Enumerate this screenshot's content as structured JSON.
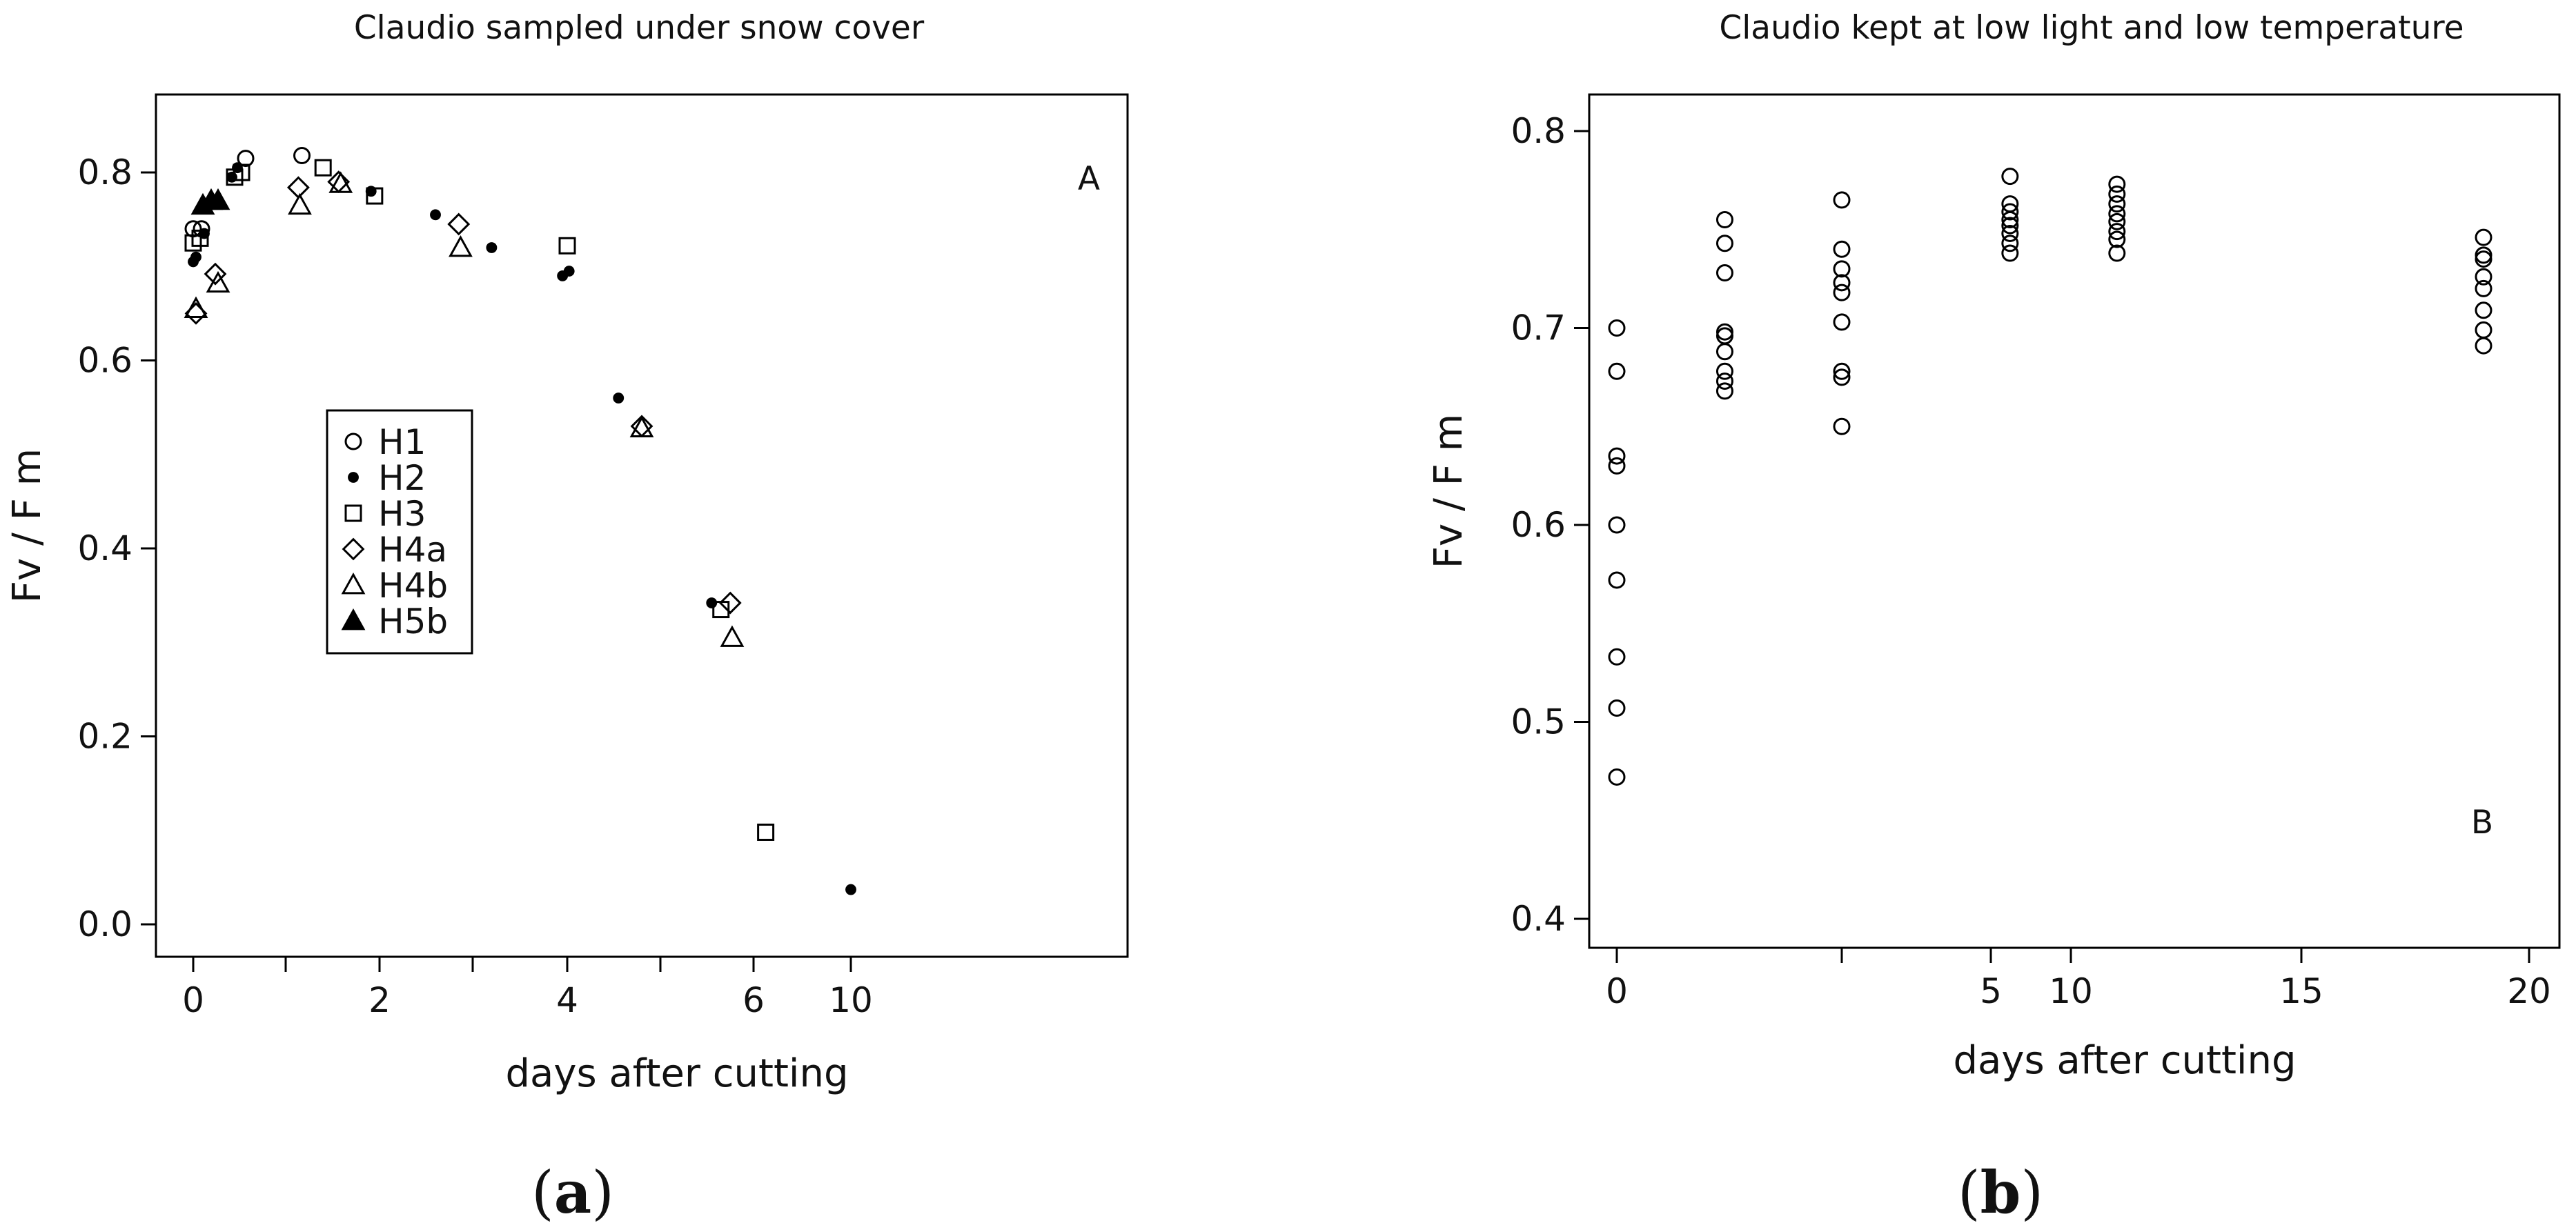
{
  "chart_data": [
    {
      "type": "scatter",
      "title": "Claudio sampled under snow cover",
      "xlabel": "days after cutting",
      "ylabel": "Fv / F m",
      "panel_caption": {
        "open": "(",
        "letter": "a",
        "close": ")"
      },
      "corner_label": "A",
      "x_scale": "piecewise (unequal day spacing)",
      "x_ticks": [
        {
          "label": "0",
          "value": 0
        },
        {
          "label": "",
          "value": 0.67
        },
        {
          "label": "2",
          "value": 2
        },
        {
          "label": "",
          "value": 3
        },
        {
          "label": "4",
          "value": 4
        },
        {
          "label": "",
          "value": 5
        },
        {
          "label": "6",
          "value": 6
        },
        {
          "label": "10",
          "value": 10
        }
      ],
      "xlim": [
        -0.3,
        10.4
      ],
      "ylim": [
        -0.04,
        0.88
      ],
      "y_ticks": [
        "0.0",
        "0.2",
        "0.4",
        "0.6",
        "0.8"
      ],
      "legend_position": "center-left",
      "series": [
        {
          "name": "H1",
          "marker": "circle-open",
          "points": [
            [
              0.0,
              0.74
            ],
            [
              0.06,
              0.74
            ],
            [
              0.38,
              0.815
            ],
            [
              0.9,
              0.818
            ]
          ]
        },
        {
          "name": "H2",
          "marker": "dot-filled",
          "points": [
            [
              0.0,
              0.705
            ],
            [
              0.02,
              0.71
            ],
            [
              0.08,
              0.735
            ],
            [
              0.28,
              0.795
            ],
            [
              0.32,
              0.805
            ],
            [
              1.88,
              0.78
            ],
            [
              2.6,
              0.755
            ],
            [
              3.2,
              0.72
            ],
            [
              3.95,
              0.69
            ],
            [
              4.02,
              0.695
            ],
            [
              4.55,
              0.56
            ],
            [
              5.55,
              0.342
            ],
            [
              10.0,
              0.037
            ]
          ]
        },
        {
          "name": "H3",
          "marker": "square-open",
          "points": [
            [
              0.0,
              0.725
            ],
            [
              0.05,
              0.73
            ],
            [
              0.3,
              0.795
            ],
            [
              0.35,
              0.8
            ],
            [
              1.2,
              0.805
            ],
            [
              1.93,
              0.775
            ],
            [
              4.0,
              0.722
            ],
            [
              5.65,
              0.335
            ],
            [
              6.5,
              0.098
            ]
          ]
        },
        {
          "name": "H4a",
          "marker": "diamond-open",
          "points": [
            [
              0.02,
              0.65
            ],
            [
              0.16,
              0.692
            ],
            [
              0.85,
              0.784
            ],
            [
              1.42,
              0.79
            ],
            [
              2.85,
              0.745
            ],
            [
              4.8,
              0.53
            ],
            [
              5.75,
              0.342
            ]
          ]
        },
        {
          "name": "H4b",
          "marker": "triangle-open",
          "points": [
            [
              0.02,
              0.655
            ],
            [
              0.18,
              0.682
            ],
            [
              0.87,
              0.765
            ],
            [
              1.45,
              0.788
            ],
            [
              2.87,
              0.72
            ],
            [
              4.8,
              0.528
            ],
            [
              5.77,
              0.305
            ]
          ]
        },
        {
          "name": "H5b",
          "marker": "triangle-filled",
          "points": [
            [
              0.07,
              0.765
            ],
            [
              0.13,
              0.77
            ],
            [
              0.18,
              0.77
            ]
          ]
        }
      ]
    },
    {
      "type": "scatter",
      "title": "Claudio kept at low light and low temperature",
      "xlabel": "days  after cutting",
      "ylabel": "Fv / F m",
      "panel_caption": {
        "open": "(",
        "letter": "b",
        "close": ")"
      },
      "corner_label": "B",
      "x_scale": "piecewise (unequal day spacing)",
      "x_ticks": [
        {
          "label": "0",
          "value": 0
        },
        {
          "label": "",
          "value": 2.5
        },
        {
          "label": "5",
          "value": 5
        },
        {
          "label": "10",
          "value": 10
        },
        {
          "label": "15",
          "value": 15
        },
        {
          "label": "20",
          "value": 20
        }
      ],
      "xlim": [
        -0.45,
        20.7
      ],
      "ylim": [
        0.385,
        0.815
      ],
      "y_ticks": [
        "0.4",
        "0.5",
        "0.6",
        "0.7",
        "0.8"
      ],
      "series": [
        {
          "marker": "circle-open",
          "points": [
            [
              0,
              0.7
            ],
            [
              0,
              0.678
            ],
            [
              0,
              0.635
            ],
            [
              0,
              0.63
            ],
            [
              0,
              0.6
            ],
            [
              0,
              0.572
            ],
            [
              0,
              0.533
            ],
            [
              0,
              0.507
            ],
            [
              0,
              0.472
            ],
            [
              1.2,
              0.755
            ],
            [
              1.2,
              0.743
            ],
            [
              1.2,
              0.728
            ],
            [
              1.2,
              0.698
            ],
            [
              1.2,
              0.696
            ],
            [
              1.2,
              0.688
            ],
            [
              1.2,
              0.678
            ],
            [
              1.2,
              0.673
            ],
            [
              1.2,
              0.668
            ],
            [
              2.5,
              0.765
            ],
            [
              2.5,
              0.74
            ],
            [
              2.5,
              0.73
            ],
            [
              2.5,
              0.723
            ],
            [
              2.5,
              0.718
            ],
            [
              2.5,
              0.703
            ],
            [
              2.5,
              0.678
            ],
            [
              2.5,
              0.675
            ],
            [
              2.5,
              0.65
            ],
            [
              6.2,
              0.777
            ],
            [
              6.2,
              0.763
            ],
            [
              6.2,
              0.759
            ],
            [
              6.2,
              0.755
            ],
            [
              6.2,
              0.752
            ],
            [
              6.2,
              0.748
            ],
            [
              6.2,
              0.743
            ],
            [
              6.2,
              0.738
            ],
            [
              11,
              0.773
            ],
            [
              11,
              0.768
            ],
            [
              11,
              0.763
            ],
            [
              11,
              0.758
            ],
            [
              11,
              0.754
            ],
            [
              11,
              0.749
            ],
            [
              11,
              0.745
            ],
            [
              11,
              0.738
            ],
            [
              19,
              0.746
            ],
            [
              19,
              0.737
            ],
            [
              19,
              0.735
            ],
            [
              19,
              0.726
            ],
            [
              19,
              0.72
            ],
            [
              19,
              0.709
            ],
            [
              19,
              0.699
            ],
            [
              19,
              0.691
            ]
          ]
        }
      ]
    }
  ]
}
